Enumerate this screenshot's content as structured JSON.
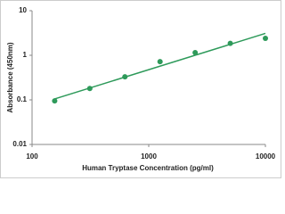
{
  "chart_data": {
    "type": "scatter",
    "x_label": "Human Tryptase Concentration (pg/ml)",
    "y_label": "Absorbance (450nm)",
    "x": [
      156.25,
      312.5,
      625,
      1250,
      2500,
      5000,
      10000
    ],
    "values": [
      0.095,
      0.18,
      0.33,
      0.72,
      1.15,
      1.85,
      2.4
    ],
    "color": "#2e9a5a",
    "trendline": {
      "x": [
        156.25,
        10000
      ],
      "values": [
        0.105,
        3.1
      ]
    },
    "xlog": true,
    "ylog": true,
    "xlim": [
      100,
      10000
    ],
    "xticks": [
      100,
      1000,
      10000
    ],
    "ylim": [
      0.01,
      10
    ],
    "yticks": [
      0.01,
      0.1,
      1,
      10
    ],
    "grid": false
  }
}
